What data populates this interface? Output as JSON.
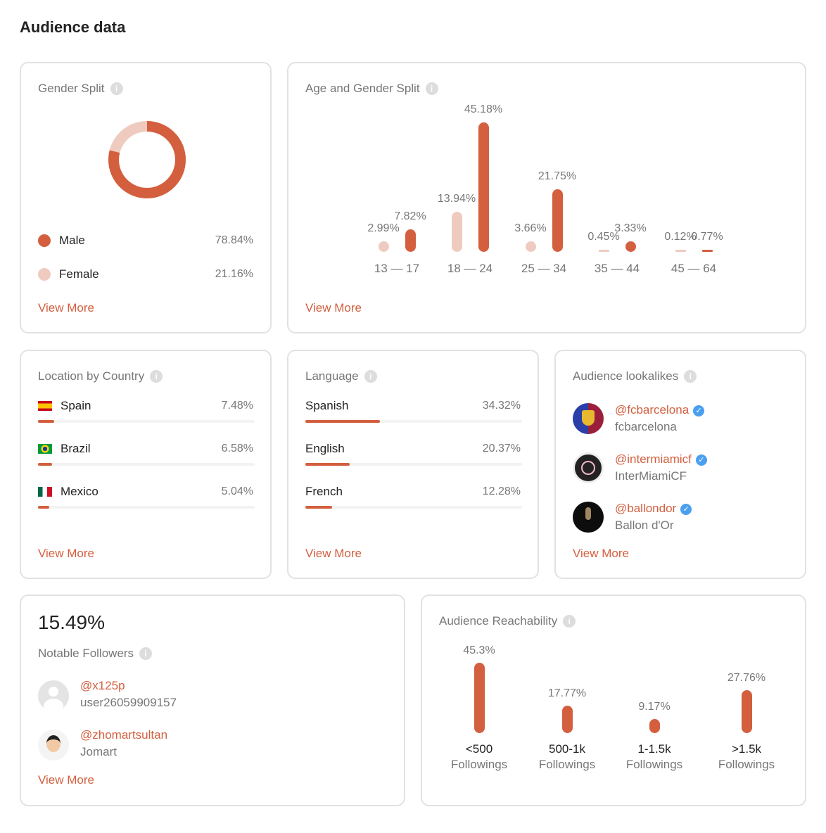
{
  "title": "Audience data",
  "colors": {
    "accent": "#d35f3f",
    "light": "#efcbbf"
  },
  "view_more": "View More",
  "gender": {
    "title": "Gender Split",
    "items": [
      {
        "label": "Male",
        "value": "78.84%",
        "pct": 78.84
      },
      {
        "label": "Female",
        "value": "21.16%",
        "pct": 21.16
      }
    ]
  },
  "age": {
    "title": "Age and Gender Split",
    "groups": [
      {
        "label": "13 — 17",
        "female": 2.99,
        "male": 7.82,
        "female_text": "2.99%",
        "male_text": "7.82%"
      },
      {
        "label": "18 — 24",
        "female": 13.94,
        "male": 45.18,
        "female_text": "13.94%",
        "male_text": "45.18%"
      },
      {
        "label": "25 — 34",
        "female": 3.66,
        "male": 21.75,
        "female_text": "3.66%",
        "male_text": "21.75%"
      },
      {
        "label": "35 — 44",
        "female": 0.45,
        "male": 3.33,
        "female_text": "0.45%",
        "male_text": "3.33%"
      },
      {
        "label": "45 — 64",
        "female": 0.12,
        "male": 0.77,
        "female_text": "0.12%",
        "male_text": "0.77%"
      }
    ]
  },
  "location": {
    "title": "Location by Country",
    "items": [
      {
        "label": "Spain",
        "value": "7.48%",
        "pct": 7.48,
        "flag": "es"
      },
      {
        "label": "Brazil",
        "value": "6.58%",
        "pct": 6.58,
        "flag": "br"
      },
      {
        "label": "Mexico",
        "value": "5.04%",
        "pct": 5.04,
        "flag": "mx"
      }
    ]
  },
  "language": {
    "title": "Language",
    "items": [
      {
        "label": "Spanish",
        "value": "34.32%",
        "pct": 34.32
      },
      {
        "label": "English",
        "value": "20.37%",
        "pct": 20.37
      },
      {
        "label": "French",
        "value": "12.28%",
        "pct": 12.28
      }
    ]
  },
  "lookalikes": {
    "title": "Audience lookalikes",
    "items": [
      {
        "handle": "@fcbarcelona",
        "name": "fcbarcelona"
      },
      {
        "handle": "@intermiamicf",
        "name": "InterMiamiCF"
      },
      {
        "handle": "@ballondor",
        "name": "Ballon d'Or"
      }
    ]
  },
  "notable": {
    "value": "15.49%",
    "title": "Notable Followers",
    "items": [
      {
        "handle": "@x125p",
        "name": "user26059909157"
      },
      {
        "handle": "@zhomartsultan",
        "name": "Jomart"
      }
    ]
  },
  "reach": {
    "title": "Audience Reachability",
    "items": [
      {
        "value": 45.3,
        "text": "45.3%",
        "l1": "<500",
        "l2": "Followings"
      },
      {
        "value": 17.77,
        "text": "17.77%",
        "l1": "500-1k",
        "l2": "Followings"
      },
      {
        "value": 9.17,
        "text": "9.17%",
        "l1": "1-1.5k",
        "l2": "Followings"
      },
      {
        "value": 27.76,
        "text": "27.76%",
        "l1": ">1.5k",
        "l2": "Followings"
      }
    ]
  }
}
